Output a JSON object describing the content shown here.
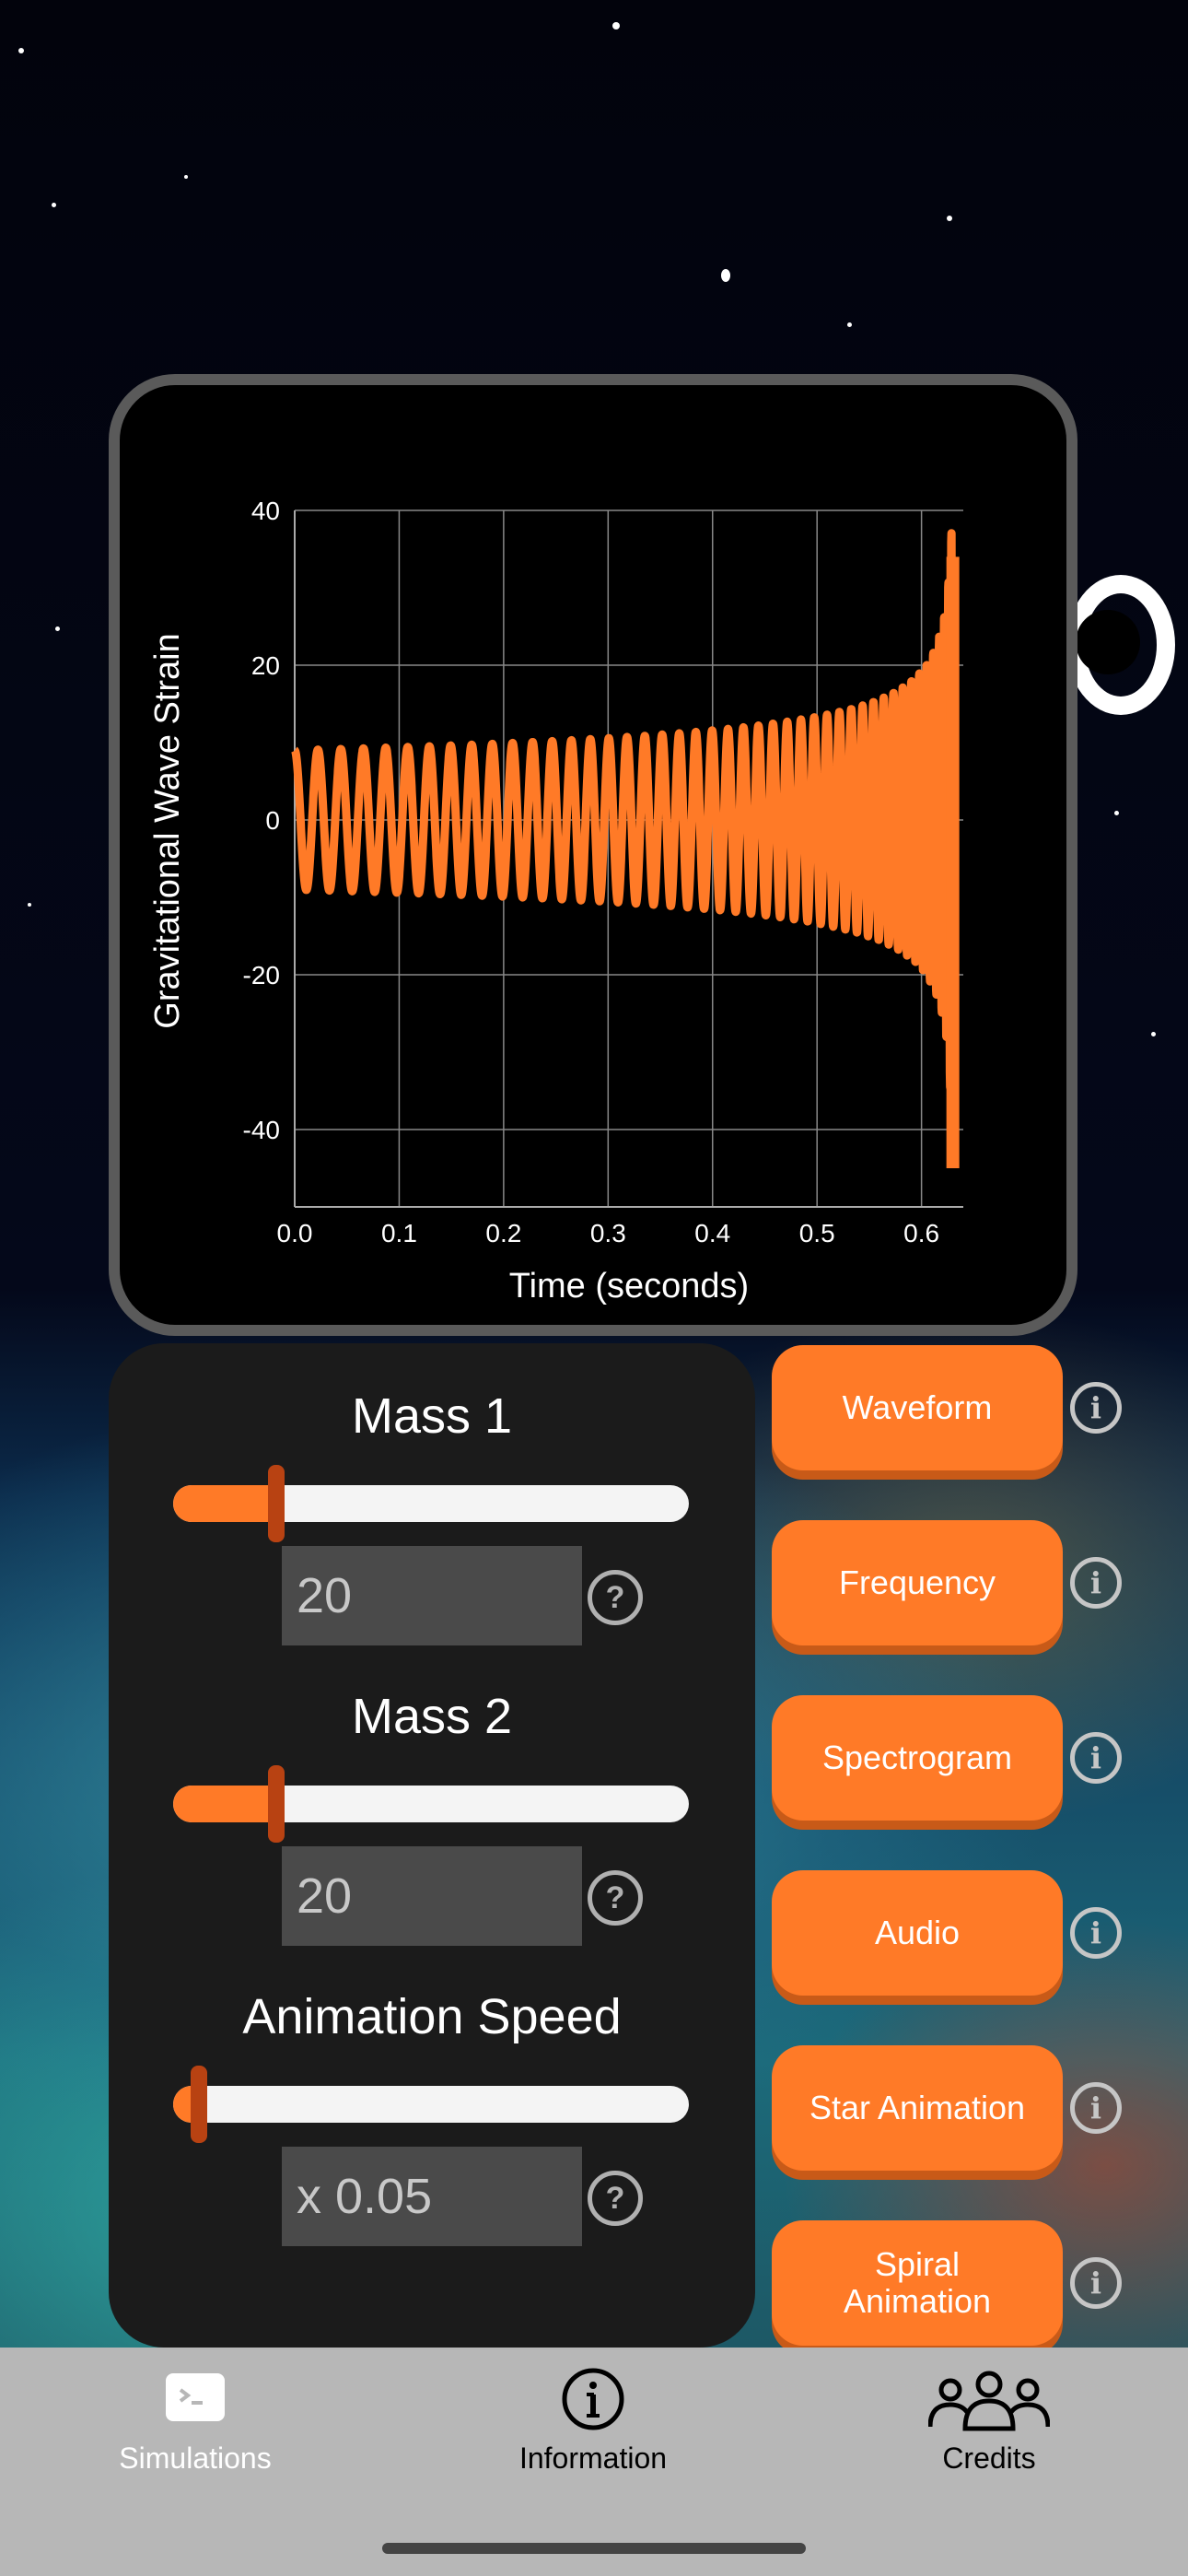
{
  "chart_data": {
    "type": "line",
    "xlabel": "Time (seconds)",
    "ylabel": "Gravitational Wave Strain",
    "xlim": [
      0.0,
      0.64
    ],
    "ylim": [
      -50,
      40
    ],
    "xticks": [
      "0.0",
      "0.1",
      "0.2",
      "0.3",
      "0.4",
      "0.5",
      "0.6"
    ],
    "yticks": [
      "40",
      "20",
      "0",
      "-20",
      "-40"
    ],
    "xtick_values": [
      0.0,
      0.1,
      0.2,
      0.3,
      0.4,
      0.5,
      0.6
    ],
    "ytick_values": [
      40,
      20,
      0,
      -20,
      -40
    ],
    "grid": true,
    "series_color": "#ff7a27",
    "waveform": {
      "start_amplitude": 9,
      "peak_amplitude": 39,
      "merger_time": 0.63,
      "cycles": 45,
      "min_amplitude_at_merger": -45,
      "max_amplitude_at_merger": 34
    }
  },
  "controls": {
    "mass1": {
      "title": "Mass 1",
      "value": "20",
      "level": 0.2
    },
    "mass2": {
      "title": "Mass 2",
      "value": "20",
      "level": 0.2
    },
    "speed": {
      "title": "Animation Speed",
      "value": "x 0.05",
      "level": 0.05
    },
    "help_glyph": "?"
  },
  "options": [
    {
      "label": "Waveform"
    },
    {
      "label": "Frequency"
    },
    {
      "label": "Spectrogram"
    },
    {
      "label": "Audio"
    },
    {
      "label": "Star Animation"
    },
    {
      "label": "Spiral Animation"
    }
  ],
  "info_glyph": "i",
  "tabs": {
    "simulations": "Simulations",
    "information": "Information",
    "credits": "Credits"
  },
  "colors": {
    "accent": "#ff7a27",
    "thumb": "#b84212",
    "panel": "#1b1b1b",
    "tabbar": "#b7b7b7"
  }
}
